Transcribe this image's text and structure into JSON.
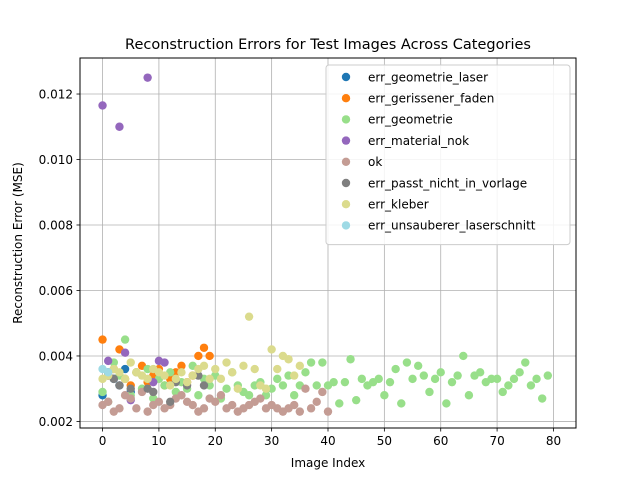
{
  "chart_data": {
    "type": "scatter",
    "title": "Reconstruction Errors for Test Images Across Categories",
    "xlabel": "Image Index",
    "ylabel": "Reconstruction Error (MSE)",
    "xlim": [
      -4,
      84
    ],
    "ylim": [
      0.0018,
      0.0131
    ],
    "xticks": [
      0,
      10,
      20,
      30,
      40,
      50,
      60,
      70,
      80
    ],
    "yticks": [
      0.002,
      0.004,
      0.006,
      0.008,
      0.01,
      0.012
    ],
    "ytick_labels": [
      "0.002",
      "0.004",
      "0.006",
      "0.008",
      "0.010",
      "0.012"
    ],
    "grid": true,
    "legend_position": "top-right",
    "series": [
      {
        "name": "err_geometrie_laser",
        "color": "#1f77b4",
        "x": [
          0,
          1,
          2,
          3,
          4,
          5
        ],
        "y": [
          0.0028,
          0.0035,
          0.0033,
          0.0031,
          0.0036,
          0.0029
        ]
      },
      {
        "name": "err_gerissener_faden",
        "color": "#ff7f0e",
        "x": [
          0,
          1,
          2,
          3,
          4,
          5,
          6,
          7,
          8,
          9,
          10,
          11,
          12,
          13,
          14,
          15,
          16,
          17,
          18,
          19
        ],
        "y": [
          0.0045,
          0.0034,
          0.0036,
          0.0042,
          0.0033,
          0.0031,
          0.0035,
          0.0037,
          0.0032,
          0.0034,
          0.0036,
          0.0031,
          0.0033,
          0.0035,
          0.0037,
          0.0032,
          0.0034,
          0.004,
          0.00425,
          0.004
        ]
      },
      {
        "name": "err_geometrie",
        "color": "#98df8a",
        "x": [
          0,
          1,
          2,
          3,
          4,
          5,
          6,
          7,
          8,
          9,
          10,
          11,
          12,
          13,
          14,
          15,
          16,
          17,
          18,
          19,
          20,
          21,
          22,
          23,
          24,
          25,
          26,
          27,
          28,
          29,
          30,
          31,
          32,
          33,
          34,
          35,
          36,
          37,
          38,
          39,
          40,
          41,
          42,
          43,
          44,
          45,
          46,
          47,
          48,
          49,
          50,
          51,
          52,
          53,
          54,
          55,
          56,
          57,
          58,
          59,
          60,
          61,
          62,
          63,
          64,
          65,
          66,
          67,
          68,
          69,
          70,
          71,
          72,
          73,
          74,
          75,
          76,
          77,
          78,
          79
        ],
        "y": [
          0.0029,
          0.0026,
          0.0038,
          0.0034,
          0.0045,
          0.0028,
          0.0035,
          0.003,
          0.0036,
          0.0027,
          0.0033,
          0.0031,
          0.0035,
          0.0029,
          0.0032,
          0.003,
          0.0037,
          0.0028,
          0.0033,
          0.0031,
          0.0034,
          0.0027,
          0.003,
          0.0035,
          0.0031,
          0.0029,
          0.0028,
          0.0031,
          0.0032,
          0.0028,
          0.003,
          0.0033,
          0.0031,
          0.0034,
          0.0028,
          0.0031,
          0.0035,
          0.0038,
          0.0031,
          0.0038,
          0.0031,
          0.0032,
          0.00255,
          0.0032,
          0.0039,
          0.00265,
          0.0033,
          0.0031,
          0.0032,
          0.0033,
          0.0028,
          0.0032,
          0.0036,
          0.00255,
          0.0038,
          0.0033,
          0.0037,
          0.0034,
          0.0029,
          0.0033,
          0.0035,
          0.00255,
          0.0032,
          0.0034,
          0.004,
          0.0028,
          0.0034,
          0.0035,
          0.0032,
          0.0033,
          0.0033,
          0.0029,
          0.0031,
          0.0033,
          0.0035,
          0.0038,
          0.0031,
          0.0033,
          0.0027,
          0.0034
        ]
      },
      {
        "name": "err_material_nok",
        "color": "#9467bd",
        "x": [
          0,
          1,
          3,
          4,
          5,
          8,
          9,
          10,
          11
        ],
        "y": [
          0.01165,
          0.00385,
          0.011,
          0.0041,
          0.00265,
          0.0125,
          0.0032,
          0.00385,
          0.0038
        ]
      },
      {
        "name": "ok",
        "color": "#c49c94",
        "x": [
          0,
          1,
          2,
          3,
          4,
          5,
          6,
          7,
          8,
          9,
          10,
          11,
          12,
          13,
          14,
          15,
          16,
          17,
          18,
          19,
          20,
          21,
          22,
          23,
          24,
          25,
          26,
          27,
          28,
          29,
          30,
          31,
          32,
          33,
          34,
          35,
          36,
          37,
          38,
          39,
          40
        ],
        "y": [
          0.0025,
          0.0026,
          0.0023,
          0.0024,
          0.0028,
          0.0027,
          0.0024,
          0.0029,
          0.0023,
          0.0025,
          0.0026,
          0.0024,
          0.0025,
          0.0027,
          0.0028,
          0.0026,
          0.0025,
          0.0023,
          0.0024,
          0.0027,
          0.0026,
          0.0028,
          0.0024,
          0.0025,
          0.0023,
          0.0024,
          0.0025,
          0.0026,
          0.0027,
          0.0024,
          0.0025,
          0.0024,
          0.0023,
          0.0024,
          0.0025,
          0.0023,
          0.003,
          0.0024,
          0.0026,
          0.0029,
          0.0023
        ]
      },
      {
        "name": "err_passt_nicht_in_vorlage",
        "color": "#7f7f7f",
        "x": [
          1,
          2,
          3,
          5,
          8,
          9,
          12,
          13,
          15,
          17,
          18
        ],
        "y": [
          0.0034,
          0.0033,
          0.0031,
          0.003,
          0.003,
          0.0029,
          0.0026,
          0.0032,
          0.0031,
          0.0034,
          0.0031
        ]
      },
      {
        "name": "err_kleber",
        "color": "#dbdb8d",
        "x": [
          0,
          1,
          2,
          3,
          4,
          5,
          6,
          7,
          8,
          9,
          10,
          11,
          12,
          13,
          14,
          15,
          16,
          17,
          18,
          19,
          20,
          21,
          22,
          23,
          24,
          25,
          26,
          27,
          28,
          29,
          30,
          31,
          32,
          33,
          34,
          35
        ],
        "y": [
          0.0033,
          0.0034,
          0.0036,
          0.0035,
          0.0033,
          0.0038,
          0.0035,
          0.0034,
          0.0033,
          0.0036,
          0.0035,
          0.0034,
          0.0031,
          0.0033,
          0.0035,
          0.0032,
          0.0034,
          0.0036,
          0.0037,
          0.0033,
          0.0036,
          0.0033,
          0.0038,
          0.0035,
          0.003,
          0.0037,
          0.0052,
          0.0036,
          0.0031,
          0.003,
          0.0042,
          0.0036,
          0.004,
          0.0039,
          0.0034,
          0.0037
        ]
      },
      {
        "name": "err_unsauberer_laserschnitt",
        "color": "#9edae5",
        "x": [
          0,
          1
        ],
        "y": [
          0.0036,
          0.0035
        ]
      }
    ]
  }
}
